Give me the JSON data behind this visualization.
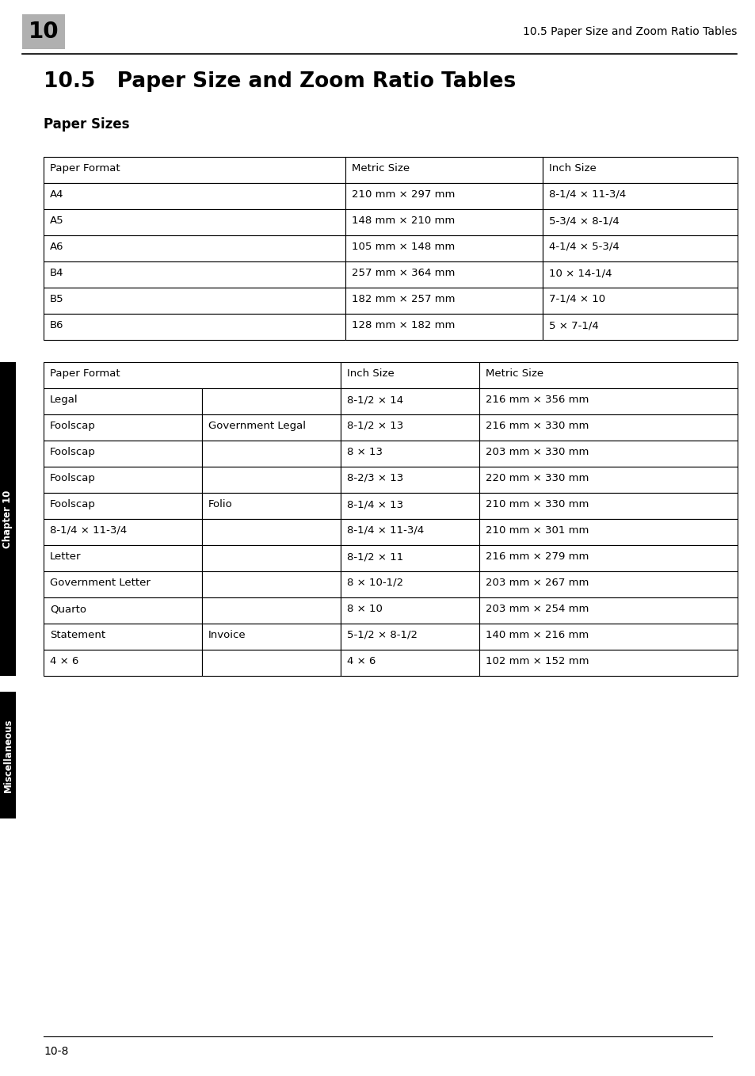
{
  "page_num_box": "10",
  "header_text": "10.5 Paper Size and Zoom Ratio Tables",
  "section_title": "10.5   Paper Size and Zoom Ratio Tables",
  "subsection_title": "Paper Sizes",
  "footer_text": "10-8",
  "table1_headers": [
    "Paper Format",
    "Metric Size",
    "Inch Size"
  ],
  "table1_rows": [
    [
      "A4",
      "210 mm × 297 mm",
      "8-1/4 × 11-3/4"
    ],
    [
      "A5",
      "148 mm × 210 mm",
      "5-3/4 × 8-1/4"
    ],
    [
      "A6",
      "105 mm × 148 mm",
      "4-1/4 × 5-3/4"
    ],
    [
      "B4",
      "257 mm × 364 mm",
      "10 × 14-1/4"
    ],
    [
      "B5",
      "182 mm × 257 mm",
      "7-1/4 × 10"
    ],
    [
      "B6",
      "128 mm × 182 mm",
      "5 × 7-1/4"
    ]
  ],
  "table2_headers": [
    "Paper Format",
    "Inch Size",
    "Metric Size"
  ],
  "table2_rows": [
    [
      "Legal",
      "",
      "8-1/2 × 14",
      "216 mm × 356 mm"
    ],
    [
      "Foolscap",
      "Government Legal",
      "8-1/2 × 13",
      "216 mm × 330 mm"
    ],
    [
      "Foolscap",
      "",
      "8 × 13",
      "203 mm × 330 mm"
    ],
    [
      "Foolscap",
      "",
      "8-2/3 × 13",
      "220 mm × 330 mm"
    ],
    [
      "Foolscap",
      "Folio",
      "8-1/4 × 13",
      "210 mm × 330 mm"
    ],
    [
      "8-1/4 × 11-3/4",
      "",
      "8-1/4 × 11-3/4",
      "210 mm × 301 mm"
    ],
    [
      "Letter",
      "",
      "8-1/2 × 11",
      "216 mm × 279 mm"
    ],
    [
      "Government Letter",
      "",
      "8 × 10-1/2",
      "203 mm × 267 mm"
    ],
    [
      "Quarto",
      "",
      "8 × 10",
      "203 mm × 254 mm"
    ],
    [
      "Statement",
      "Invoice",
      "5-1/2 × 8-1/2",
      "140 mm × 216 mm"
    ],
    [
      "4 × 6",
      "",
      "4 × 6",
      "102 mm × 152 mm"
    ]
  ]
}
